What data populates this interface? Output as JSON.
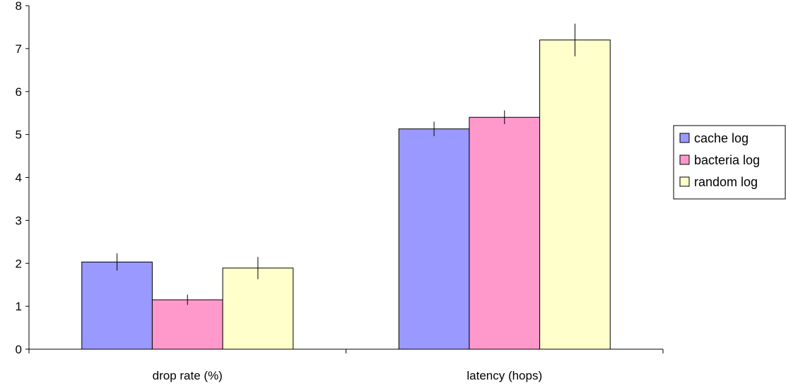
{
  "chart_data": {
    "type": "bar",
    "categories": [
      "drop rate (%)",
      "latency (hops)"
    ],
    "series": [
      {
        "name": "cache log",
        "values": [
          2.03,
          5.13
        ],
        "errors": [
          0.2,
          0.17
        ],
        "color": "#9999ff"
      },
      {
        "name": "bacteria log",
        "values": [
          1.15,
          5.4
        ],
        "errors": [
          0.12,
          0.16
        ],
        "color": "#ff99cc"
      },
      {
        "name": "random log",
        "values": [
          1.89,
          7.2
        ],
        "errors": [
          0.26,
          0.38
        ],
        "color": "#ffffcc"
      }
    ],
    "ylim": [
      0,
      8
    ],
    "yticks": [
      "0",
      "1",
      "2",
      "3",
      "4",
      "5",
      "6",
      "7",
      "8"
    ],
    "grid": false,
    "legend_position": "right"
  }
}
